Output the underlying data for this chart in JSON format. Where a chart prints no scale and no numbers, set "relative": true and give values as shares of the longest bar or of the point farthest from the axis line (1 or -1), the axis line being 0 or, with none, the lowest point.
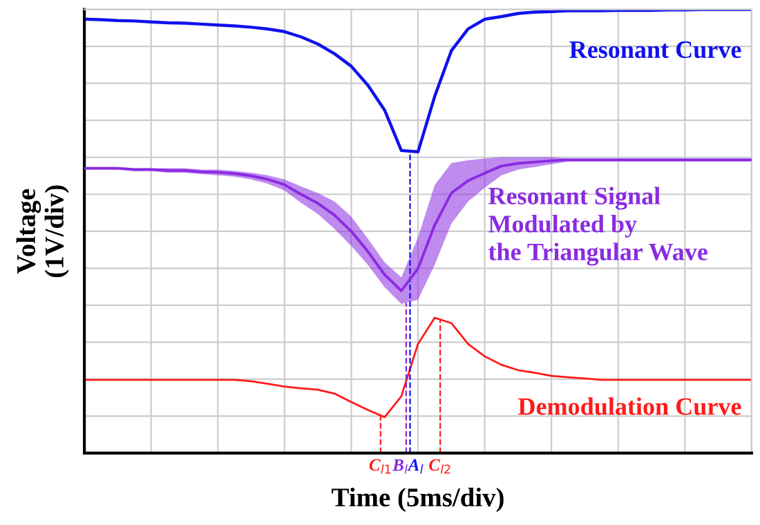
{
  "chart_data": {
    "type": "line",
    "relative": true,
    "xlabel": "Time (5ms/div)",
    "ylabel": "Voltage\n(1V/div)",
    "categories": [
      null,
      null,
      null,
      null,
      null,
      null,
      null,
      null,
      null,
      null,
      null,
      null,
      null,
      null,
      null,
      null,
      null,
      null,
      null,
      null,
      null,
      null,
      null,
      null,
      null,
      null,
      null,
      null,
      null,
      null,
      null,
      null,
      null,
      null,
      null,
      null,
      null,
      null,
      null,
      null,
      null
    ],
    "series": [
      {
        "name": "Resonant Curve",
        "color": "#1010ee",
        "values": [
          0.978,
          0.977,
          0.975,
          0.974,
          0.972,
          0.97,
          0.969,
          0.967,
          0.965,
          0.963,
          0.96,
          0.956,
          0.95,
          0.938,
          0.922,
          0.9,
          0.872,
          0.829,
          0.773,
          0.682,
          0.679,
          0.804,
          0.907,
          0.956,
          0.978,
          0.984,
          0.991,
          0.994,
          0.995,
          0.997,
          0.997,
          0.997,
          0.998,
          0.998,
          0.998,
          0.999,
          0.999,
          1,
          1,
          1,
          1
        ]
      },
      {
        "name": "Resonant Signal\nModulated by\nthe Triangular Wave",
        "color": "#8a2be2",
        "values": [
          0.642,
          0.642,
          0.642,
          0.639,
          0.639,
          0.637,
          0.637,
          0.634,
          0.633,
          0.63,
          0.625,
          0.617,
          0.605,
          0.583,
          0.563,
          0.536,
          0.5,
          0.454,
          0.402,
          0.366,
          0.416,
          0.514,
          0.586,
          0.614,
          0.631,
          0.647,
          0.653,
          0.656,
          0.659,
          0.661,
          0.661,
          0.661,
          0.661,
          0.661,
          0.661,
          0.661,
          0.661,
          0.661,
          0.661,
          0.661,
          0.661
        ],
        "upper": [
          0.645,
          0.645,
          0.645,
          0.642,
          0.642,
          0.642,
          0.642,
          0.639,
          0.639,
          0.636,
          0.632,
          0.626,
          0.617,
          0.601,
          0.586,
          0.567,
          0.533,
          0.483,
          0.43,
          0.396,
          0.486,
          0.604,
          0.654,
          0.66,
          0.664,
          0.667,
          0.667,
          0.667,
          0.667,
          0.664,
          0.664,
          0.664,
          0.664,
          0.664,
          0.664,
          0.664,
          0.664,
          0.664,
          0.664,
          0.664,
          0.664
        ],
        "lower": [
          0.639,
          0.639,
          0.639,
          0.636,
          0.636,
          0.632,
          0.632,
          0.629,
          0.626,
          0.623,
          0.617,
          0.607,
          0.592,
          0.564,
          0.539,
          0.505,
          0.467,
          0.424,
          0.374,
          0.336,
          0.346,
          0.424,
          0.517,
          0.567,
          0.598,
          0.626,
          0.639,
          0.645,
          0.651,
          0.657,
          0.657,
          0.657,
          0.657,
          0.657,
          0.657,
          0.657,
          0.657,
          0.657,
          0.657,
          0.657,
          0.657
        ]
      },
      {
        "name": "Demodulation Curve",
        "color": "#ff1a1a",
        "values": [
          0.165,
          0.165,
          0.165,
          0.165,
          0.165,
          0.165,
          0.165,
          0.165,
          0.165,
          0.165,
          0.162,
          0.156,
          0.15,
          0.146,
          0.143,
          0.134,
          0.115,
          0.097,
          0.081,
          0.128,
          0.246,
          0.305,
          0.293,
          0.246,
          0.218,
          0.199,
          0.187,
          0.181,
          0.174,
          0.171,
          0.168,
          0.165,
          0.165,
          0.165,
          0.165,
          0.165,
          0.165,
          0.165,
          0.165,
          0.165,
          0.165
        ]
      }
    ],
    "annotations": [
      "C$_{l1}$",
      "B$_{l}$",
      "A$_{l}$",
      "C$_{l2}$"
    ],
    "grid": true,
    "tick_labels": false,
    "line_style": "solid",
    "marker": "none"
  }
}
